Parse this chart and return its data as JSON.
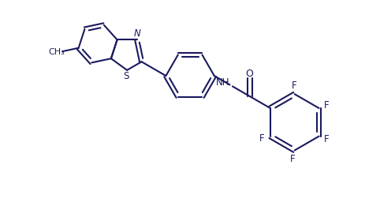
{
  "line_color": "#1a1a5e",
  "background_color": "#ffffff",
  "line_width": 1.5,
  "font_size": 8.5,
  "figsize": [
    4.82,
    2.8
  ],
  "dpi": 100,
  "xlim": [
    0,
    9.64
  ],
  "ylim": [
    0,
    5.6
  ]
}
